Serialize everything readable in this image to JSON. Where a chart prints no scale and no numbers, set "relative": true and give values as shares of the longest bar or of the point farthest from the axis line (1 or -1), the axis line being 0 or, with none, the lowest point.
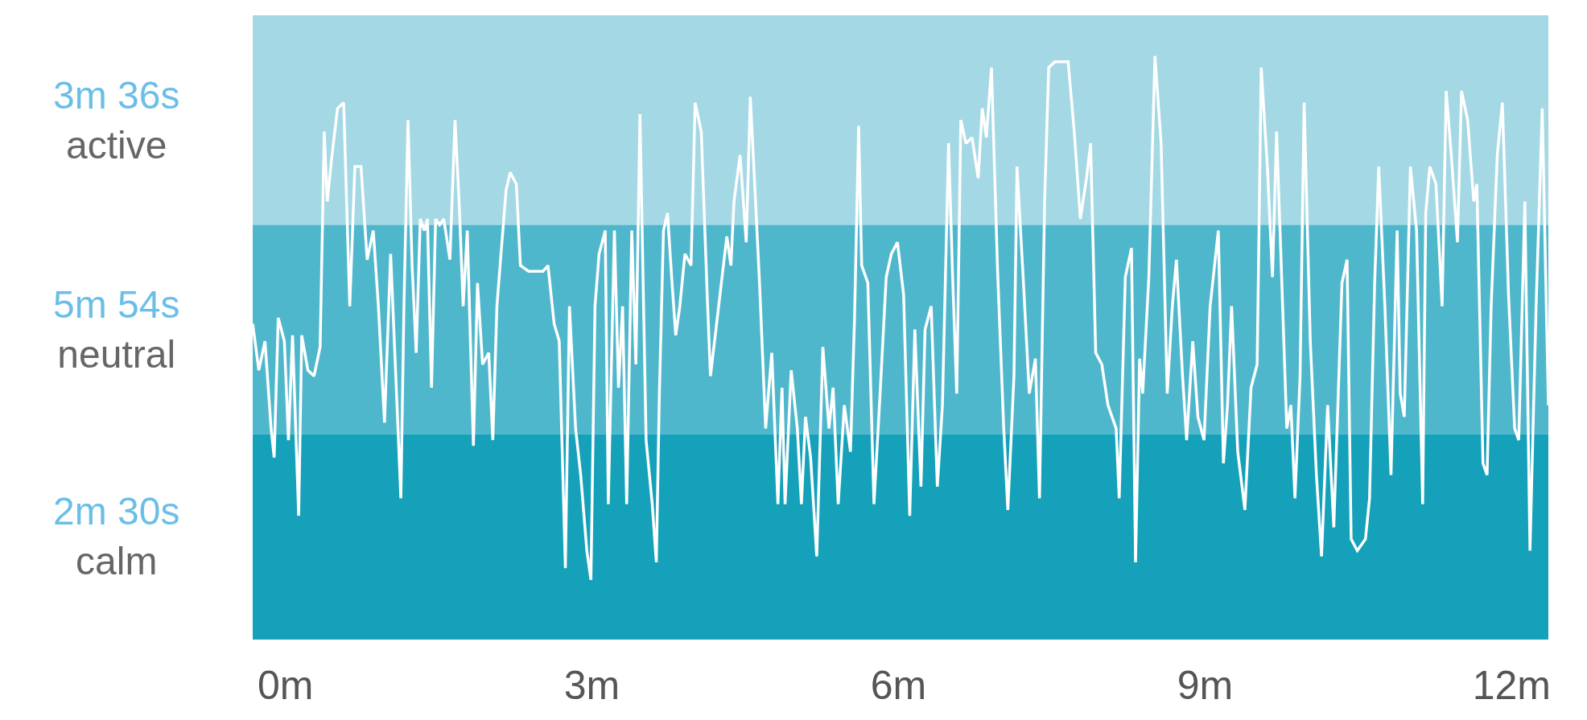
{
  "chart_data": {
    "type": "line",
    "relative": true,
    "color": "#ffffff",
    "marker": "none",
    "tick_labels": "x",
    "xlim": [
      -0.32,
      12.36
    ],
    "xticks": [
      {
        "value": 0,
        "label": "0m"
      },
      {
        "value": 3,
        "label": "3m"
      },
      {
        "value": 6,
        "label": "6m"
      },
      {
        "value": 9,
        "label": "9m"
      },
      {
        "value": 12,
        "label": "12m"
      }
    ],
    "bands": [
      {
        "axis": "y",
        "from": 0.71,
        "to": 1.07,
        "label": "3m 36s\nactive",
        "color": "#a3d8e4"
      },
      {
        "axis": "y",
        "from": 0.35,
        "to": 0.71,
        "label": "5m 54s\nneutral",
        "color": "#4fb7cb"
      },
      {
        "axis": "y",
        "from": 0,
        "to": 0.35,
        "label": "2m 30s\ncalm",
        "color": "#14a1b9"
      }
    ],
    "x": [
      -0.32,
      -0.26,
      -0.2,
      -0.14,
      -0.11,
      -0.07,
      -0.01,
      0.03,
      0.07,
      0.13,
      0.16,
      0.22,
      0.28,
      0.34,
      0.38,
      0.41,
      0.45,
      0.51,
      0.57,
      0.63,
      0.68,
      0.74,
      0.8,
      0.86,
      0.91,
      0.97,
      1.03,
      1.09,
      1.13,
      1.16,
      1.2,
      1.24,
      1.28,
      1.32,
      1.36,
      1.39,
      1.43,
      1.47,
      1.51,
      1.55,
      1.61,
      1.66,
      1.7,
      1.74,
      1.78,
      1.84,
      1.88,
      1.93,
      1.99,
      2.03,
      2.07,
      2.11,
      2.16,
      2.2,
      2.26,
      2.3,
      2.38,
      2.52,
      2.57,
      2.63,
      2.68,
      2.74,
      2.78,
      2.84,
      2.89,
      2.95,
      2.99,
      3.03,
      3.07,
      3.13,
      3.16,
      3.22,
      3.26,
      3.3,
      3.34,
      3.39,
      3.43,
      3.47,
      3.53,
      3.59,
      3.63,
      3.66,
      3.7,
      3.74,
      3.78,
      3.82,
      3.86,
      3.91,
      3.97,
      4.01,
      4.07,
      4.13,
      4.16,
      4.24,
      4.28,
      4.32,
      4.36,
      4.39,
      4.45,
      4.51,
      4.55,
      4.59,
      4.64,
      4.7,
      4.76,
      4.82,
      4.86,
      4.89,
      4.95,
      5.01,
      5.05,
      5.09,
      5.14,
      5.2,
      5.26,
      5.32,
      5.36,
      5.41,
      5.47,
      5.53,
      5.57,
      5.61,
      5.64,
      5.7,
      5.76,
      5.82,
      5.88,
      5.93,
      5.99,
      6.05,
      6.11,
      6.16,
      6.22,
      6.26,
      6.32,
      6.38,
      6.43,
      6.49,
      6.53,
      6.57,
      6.61,
      6.66,
      6.72,
      6.78,
      6.82,
      6.86,
      6.91,
      6.97,
      7.03,
      7.07,
      7.13,
      7.16,
      7.22,
      7.28,
      7.34,
      7.38,
      7.43,
      7.47,
      7.53,
      7.66,
      7.72,
      7.78,
      7.84,
      7.88,
      7.93,
      7.99,
      8.05,
      8.13,
      8.16,
      8.22,
      8.28,
      8.32,
      8.36,
      8.39,
      8.45,
      8.51,
      8.57,
      8.63,
      8.68,
      8.72,
      8.78,
      8.82,
      8.88,
      8.93,
      8.99,
      9.05,
      9.13,
      9.18,
      9.22,
      9.26,
      9.32,
      9.39,
      9.45,
      9.51,
      9.55,
      9.61,
      9.66,
      9.7,
      9.74,
      9.8,
      9.84,
      9.88,
      9.93,
      9.97,
      10.03,
      10.09,
      10.14,
      10.2,
      10.26,
      10.34,
      10.39,
      10.43,
      10.49,
      10.57,
      10.61,
      10.66,
      10.7,
      10.76,
      10.82,
      10.88,
      10.91,
      10.95,
      11.01,
      11.07,
      11.13,
      11.16,
      11.2,
      11.26,
      11.32,
      11.36,
      11.41,
      11.47,
      11.51,
      11.57,
      11.63,
      11.66,
      11.72,
      11.76,
      11.8,
      11.86,
      11.91,
      11.97,
      12.03,
      12.07,
      12.13,
      12.18,
      12.24,
      12.3,
      12.36
    ],
    "values": [
      0.54,
      0.46,
      0.51,
      0.36,
      0.31,
      0.55,
      0.51,
      0.34,
      0.52,
      0.21,
      0.52,
      0.46,
      0.45,
      0.5,
      0.87,
      0.75,
      0.82,
      0.91,
      0.92,
      0.57,
      0.81,
      0.81,
      0.65,
      0.7,
      0.57,
      0.37,
      0.66,
      0.41,
      0.24,
      0.57,
      0.89,
      0.64,
      0.49,
      0.72,
      0.7,
      0.72,
      0.43,
      0.72,
      0.71,
      0.72,
      0.65,
      0.89,
      0.75,
      0.57,
      0.7,
      0.33,
      0.61,
      0.47,
      0.49,
      0.34,
      0.57,
      0.66,
      0.77,
      0.8,
      0.78,
      0.64,
      0.63,
      0.63,
      0.64,
      0.54,
      0.51,
      0.12,
      0.57,
      0.36,
      0.28,
      0.15,
      0.1,
      0.57,
      0.66,
      0.7,
      0.23,
      0.7,
      0.43,
      0.57,
      0.23,
      0.7,
      0.47,
      0.9,
      0.34,
      0.23,
      0.13,
      0.42,
      0.7,
      0.73,
      0.62,
      0.52,
      0.57,
      0.66,
      0.64,
      0.92,
      0.87,
      0.58,
      0.45,
      0.57,
      0.63,
      0.69,
      0.64,
      0.75,
      0.83,
      0.68,
      0.93,
      0.79,
      0.61,
      0.36,
      0.49,
      0.23,
      0.43,
      0.23,
      0.46,
      0.36,
      0.23,
      0.38,
      0.31,
      0.14,
      0.5,
      0.36,
      0.43,
      0.23,
      0.4,
      0.32,
      0.55,
      0.88,
      0.64,
      0.61,
      0.23,
      0.42,
      0.62,
      0.66,
      0.68,
      0.59,
      0.21,
      0.53,
      0.26,
      0.53,
      0.57,
      0.26,
      0.4,
      0.85,
      0.62,
      0.42,
      0.89,
      0.85,
      0.86,
      0.79,
      0.91,
      0.86,
      0.98,
      0.63,
      0.36,
      0.22,
      0.45,
      0.81,
      0.62,
      0.42,
      0.48,
      0.24,
      0.75,
      0.98,
      0.99,
      0.99,
      0.87,
      0.72,
      0.79,
      0.85,
      0.49,
      0.47,
      0.4,
      0.36,
      0.24,
      0.62,
      0.67,
      0.13,
      0.48,
      0.42,
      0.62,
      1,
      0.85,
      0.42,
      0.57,
      0.65,
      0.45,
      0.34,
      0.51,
      0.38,
      0.34,
      0.57,
      0.7,
      0.3,
      0.4,
      0.57,
      0.32,
      0.22,
      0.43,
      0.47,
      0.98,
      0.81,
      0.62,
      0.87,
      0.67,
      0.36,
      0.4,
      0.24,
      0.45,
      0.92,
      0.51,
      0.28,
      0.14,
      0.4,
      0.19,
      0.61,
      0.65,
      0.17,
      0.15,
      0.17,
      0.24,
      0.61,
      0.81,
      0.57,
      0.28,
      0.7,
      0.42,
      0.38,
      0.81,
      0.7,
      0.23,
      0.73,
      0.81,
      0.78,
      0.57,
      0.94,
      0.83,
      0.68,
      0.94,
      0.89,
      0.75,
      0.78,
      0.3,
      0.28,
      0.57,
      0.83,
      0.92,
      0.59,
      0.36,
      0.34,
      0.75,
      0.15,
      0.57,
      0.91,
      0.4
    ]
  }
}
